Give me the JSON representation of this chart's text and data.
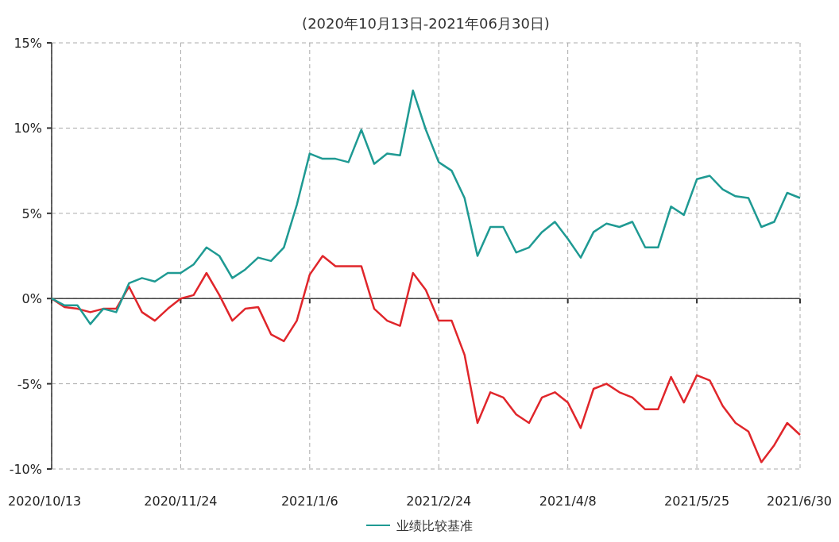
{
  "chart_data": {
    "type": "line",
    "title": "(2020年10月13日-2021年06月30日)",
    "categories": [
      "2020/10/13",
      null,
      null,
      null,
      null,
      null,
      null,
      null,
      null,
      null,
      "2020/11/24",
      null,
      null,
      null,
      null,
      null,
      null,
      null,
      null,
      null,
      "2021/1/6",
      null,
      null,
      null,
      null,
      null,
      null,
      null,
      null,
      null,
      "2021/2/24",
      null,
      null,
      null,
      null,
      null,
      null,
      null,
      null,
      null,
      "2021/4/8",
      null,
      null,
      null,
      null,
      null,
      null,
      null,
      null,
      null,
      "2021/5/25",
      null,
      null,
      null,
      null,
      null,
      null,
      null,
      "2021/6/30"
    ],
    "series": [
      {
        "color": "#e0262b",
        "values": [
          0,
          -0.5,
          -0.6,
          -0.8,
          -0.6,
          -0.6,
          0.7,
          -0.8,
          -1.3,
          -0.6,
          0,
          0.2,
          1.5,
          0.2,
          -1.3,
          -0.6,
          -0.5,
          -2.1,
          -2.5,
          -1.3,
          1.4,
          2.5,
          1.9,
          1.9,
          1.9,
          -0.6,
          -1.3,
          -1.6,
          1.5,
          0.5,
          -1.3,
          -1.3,
          -3.3,
          -7.3,
          -5.5,
          -5.8,
          -6.8,
          -7.3,
          -5.8,
          -5.5,
          -6.1,
          -7.6,
          -5.3,
          -5.0,
          -5.5,
          -5.8,
          -6.5,
          -6.5,
          -4.6,
          -6.1,
          -4.5,
          -4.8,
          -6.3,
          -7.3,
          -7.8,
          -9.6,
          -8.6,
          -7.3,
          -8.0
        ]
      },
      {
        "name": "业绩比较基准",
        "color": "#1f9a93",
        "values": [
          0,
          -0.4,
          -0.4,
          -1.5,
          -0.6,
          -0.8,
          0.9,
          1.2,
          1.0,
          1.5,
          1.5,
          2.0,
          3.0,
          2.5,
          1.2,
          1.7,
          2.4,
          2.2,
          3.0,
          5.5,
          8.5,
          8.2,
          8.2,
          8.0,
          9.9,
          7.9,
          8.5,
          8.4,
          12.2,
          9.9,
          8.0,
          7.5,
          5.9,
          2.5,
          4.2,
          4.2,
          2.7,
          3.0,
          3.9,
          4.5,
          3.5,
          2.4,
          3.9,
          4.4,
          4.2,
          4.5,
          3.0,
          3.0,
          5.4,
          4.9,
          7.0,
          7.2,
          6.4,
          6.0,
          5.9,
          4.2,
          4.5,
          6.2,
          5.9
        ]
      }
    ],
    "ylim": [
      -10,
      15
    ],
    "yticks": [
      {
        "value": -10,
        "label": "-10%"
      },
      {
        "value": -5,
        "label": "-5%"
      },
      {
        "value": 0,
        "label": "0%"
      },
      {
        "value": 5,
        "label": "5%"
      },
      {
        "value": 10,
        "label": "10%"
      },
      {
        "value": 15,
        "label": "15%"
      }
    ],
    "grid": true,
    "legend": "bottom",
    "line_style": "solid"
  }
}
